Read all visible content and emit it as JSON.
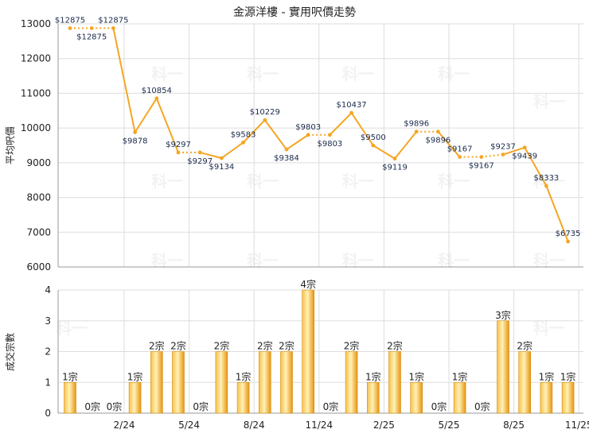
{
  "chart_data": [
    {
      "type": "line",
      "title": "金源洋樓 - 實用呎價走勢",
      "ylabel": "平均呎價",
      "ylim": [
        6000,
        13000
      ],
      "yticks": [
        6000,
        7000,
        8000,
        9000,
        10000,
        11000,
        12000,
        13000
      ],
      "xtick_labels": [
        "2/24",
        "5/24",
        "8/24",
        "11/24",
        "2/25",
        "5/25",
        "8/25",
        "11/25"
      ],
      "xtick_month_index": [
        2,
        5,
        8,
        11,
        14,
        17,
        20,
        23
      ],
      "grid": true,
      "color": "#f5a623",
      "series": [
        {
          "values": [
            12875,
            12875,
            12875,
            9878,
            10854,
            9297,
            9297,
            9134,
            9583,
            10229,
            9384,
            9803,
            9803,
            10437,
            9500,
            9119,
            9896,
            9896,
            9167,
            9167,
            9237,
            9439,
            8333,
            6735
          ],
          "labels": [
            "$12875",
            "$12875",
            "$12875",
            "$9878",
            "$10854",
            "$9297",
            "$9297",
            "$9134",
            "$9583",
            "$10229",
            "$9384",
            "$9803",
            "$9803",
            "$10437",
            "$9500",
            "$9119",
            "$9896",
            "$9896",
            "$9167",
            "$9167",
            "$9237",
            "$9439",
            "$8333",
            "$6735"
          ],
          "label_pos": [
            "above",
            "below",
            "above",
            "below",
            "above",
            "above",
            "below",
            "below",
            "above",
            "above",
            "below",
            "above",
            "below",
            "above",
            "above",
            "below",
            "above",
            "below",
            "above",
            "below",
            "above",
            "below",
            "above",
            "above"
          ],
          "dashed_after": [
            0,
            1,
            5,
            11,
            16,
            18,
            19
          ]
        }
      ]
    },
    {
      "type": "bar",
      "ylabel": "成交宗數",
      "ylim": [
        0,
        4
      ],
      "yticks": [
        0,
        1,
        2,
        3,
        4
      ],
      "grid": true,
      "color": "#f0a820",
      "values": [
        1,
        0,
        0,
        1,
        2,
        2,
        0,
        2,
        1,
        2,
        2,
        4,
        0,
        2,
        1,
        2,
        1,
        0,
        1,
        0,
        3,
        2,
        1,
        1
      ],
      "labels": [
        "1宗",
        "0宗",
        "0宗",
        "1宗",
        "2宗",
        "2宗",
        "0宗",
        "2宗",
        "1宗",
        "2宗",
        "2宗",
        "4宗",
        "0宗",
        "2宗",
        "1宗",
        "2宗",
        "1宗",
        "0宗",
        "1宗",
        "0宗",
        "3宗",
        "2宗",
        "1宗",
        "1宗"
      ]
    }
  ],
  "watermark": "科一"
}
